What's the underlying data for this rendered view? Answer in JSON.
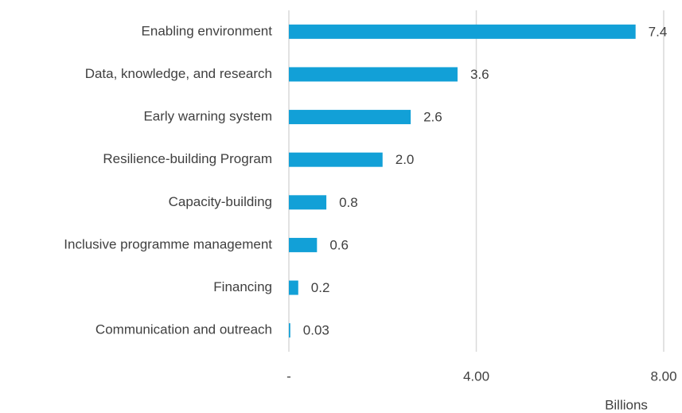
{
  "chart_data": {
    "type": "bar",
    "orientation": "horizontal",
    "x_label": "Billions",
    "categories": [
      "Enabling environment",
      "Data, knowledge, and research",
      "Early warning system",
      "Resilience-building Program",
      "Capacity-building",
      "Inclusive programme management",
      "Financing",
      "Communication and outreach"
    ],
    "values": [
      7.4,
      3.6,
      2.6,
      2.0,
      0.8,
      0.6,
      0.2,
      0.03
    ],
    "value_labels": [
      "7.4",
      "3.6",
      "2.6",
      "2.0",
      "0.8",
      "0.6",
      "0.2",
      "0.03"
    ],
    "color": "#12a0d7",
    "xlim": [
      0,
      8
    ],
    "xticks": [
      {
        "value": 0,
        "label": "-"
      },
      {
        "value": 4,
        "label": "4.00"
      },
      {
        "value": 8,
        "label": "8.00"
      }
    ],
    "grid": true
  }
}
